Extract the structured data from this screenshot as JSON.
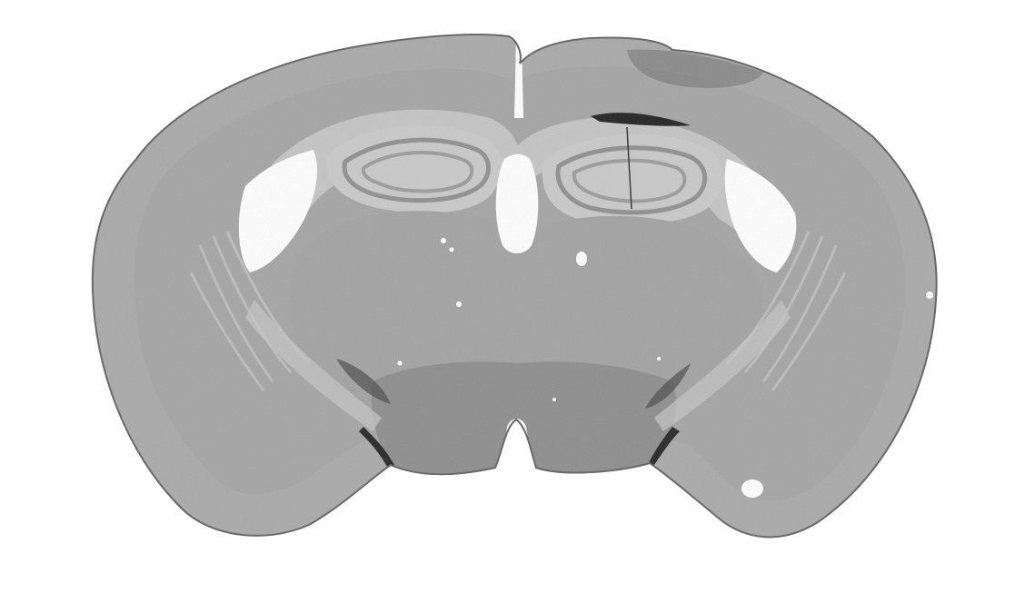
{
  "image": {
    "subject": "coronal-brain-section",
    "background_color": "#ffffff",
    "tissue_color": "#a9a9a9",
    "tissue_edge_color": "#5a5a5a",
    "white_matter_color": "#c4c4c4",
    "hippocampus_light_color": "#c9c9c9",
    "hippocampus_dark_color": "#8f8f8f",
    "ventricle_color": "#ffffff",
    "thalamus_color": "#a2a2a2",
    "hypothalamus_color": "#8d8d8d",
    "artifact_color": "#202020"
  }
}
